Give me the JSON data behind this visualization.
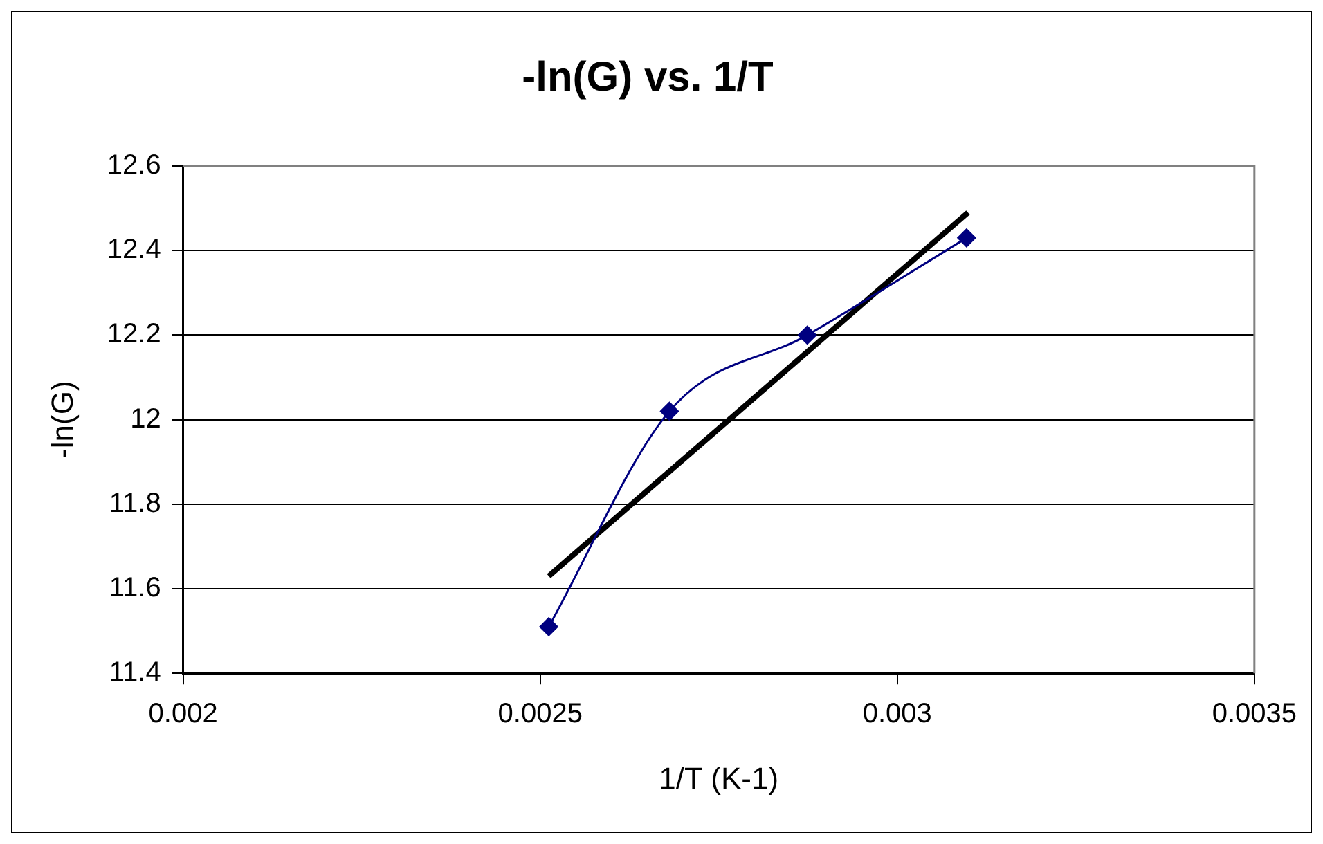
{
  "chart_data": {
    "type": "scatter",
    "title": "-ln(G) vs. 1/T",
    "xlabel": "1/T (K-1)",
    "ylabel": "-ln(G)",
    "xlim": [
      0.002,
      0.0035
    ],
    "xticks": [
      0.002,
      0.0025,
      0.003,
      0.0035
    ],
    "ylim": [
      11.4,
      12.6
    ],
    "yticks": [
      11.4,
      11.6,
      11.8,
      12,
      12.2,
      12.4,
      12.6
    ],
    "grid": "y",
    "legend": false,
    "series": [
      {
        "type": "line",
        "color": "#000080",
        "marker": "diamond",
        "x": [
          0.002512,
          0.002681,
          0.002874,
          0.003097
        ],
        "values": [
          11.51,
          12.02,
          12.2,
          12.43
        ]
      },
      {
        "type": "line",
        "color": "#000000",
        "marker": "none",
        "x": [
          0.002512,
          0.003099
        ],
        "values": [
          11.63,
          12.49
        ]
      }
    ]
  }
}
